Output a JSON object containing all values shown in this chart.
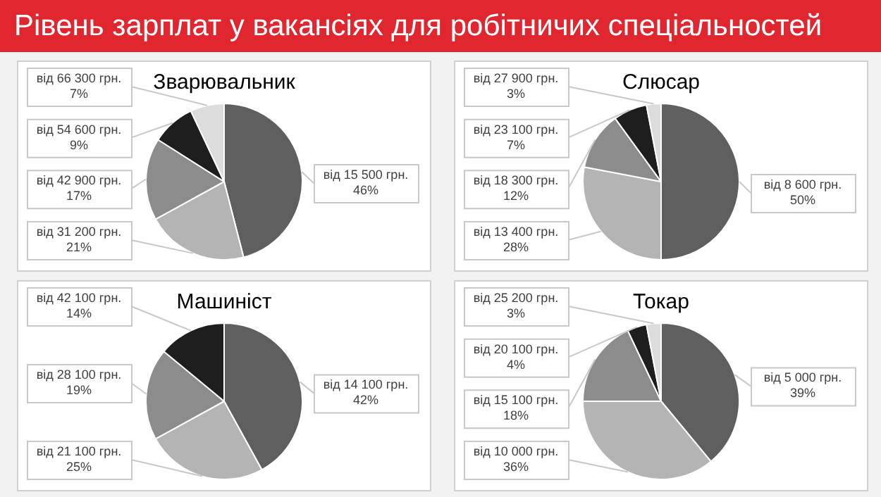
{
  "chart_data": [
    {
      "type": "other",
      "title": "Рівень зарплат у вакансіях для робітничих спеціальностей"
    },
    {
      "type": "pie",
      "title": "Зварювальник",
      "categories": [
        "від 15 500 грн.",
        "від 31 200 грн.",
        "від 42 900 грн.",
        "від 54 600 грн.",
        "від 66 300 грн."
      ],
      "values": [
        46,
        21,
        17,
        9,
        7
      ],
      "value_labels": [
        "46%",
        "21%",
        "17%",
        "9%",
        "7%"
      ],
      "colors": [
        "#5f5f5f",
        "#b4b4b4",
        "#8c8c8c",
        "#1e1e1e",
        "#dcdcdc"
      ],
      "legend": false
    },
    {
      "type": "pie",
      "title": "Слюсар",
      "categories": [
        "від 8 600 грн.",
        "від 13 400 грн.",
        "від 18 300 грн.",
        "від 23 100 грн.",
        "від 27 900 грн."
      ],
      "values": [
        50,
        28,
        12,
        7,
        3
      ],
      "value_labels": [
        "50%",
        "28%",
        "12%",
        "7%",
        "3%"
      ],
      "colors": [
        "#5f5f5f",
        "#b4b4b4",
        "#8c8c8c",
        "#1e1e1e",
        "#dcdcdc"
      ],
      "legend": false
    },
    {
      "type": "pie",
      "title": "Машиніст",
      "categories": [
        "від 14 100 грн.",
        "від 21 100 грн.",
        "від 28 100 грн.",
        "від 42 100 грн."
      ],
      "values": [
        42,
        25,
        19,
        14
      ],
      "value_labels": [
        "42%",
        "25%",
        "19%",
        "14%"
      ],
      "colors": [
        "#5f5f5f",
        "#b4b4b4",
        "#8c8c8c",
        "#1e1e1e"
      ],
      "legend": false
    },
    {
      "type": "pie",
      "title": "Токар",
      "categories": [
        "від 5 000 грн.",
        "від 10 000 грн.",
        "від 15 100 грн.",
        "від 20 100 грн.",
        "від 25 200 грн."
      ],
      "values": [
        39,
        36,
        18,
        4,
        3
      ],
      "value_labels": [
        "39%",
        "36%",
        "18%",
        "4%",
        "3%"
      ],
      "colors": [
        "#5f5f5f",
        "#b4b4b4",
        "#8c8c8c",
        "#1e1e1e",
        "#dcdcdc"
      ],
      "legend": false
    }
  ]
}
